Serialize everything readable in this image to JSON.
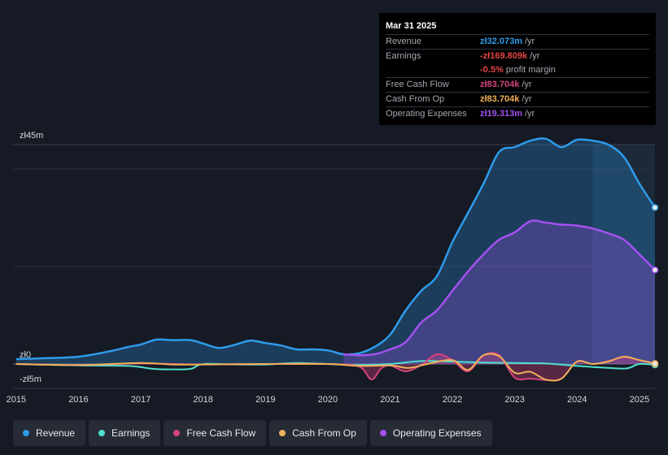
{
  "tooltip": {
    "date": "Mar 31 2025",
    "rows": [
      {
        "label": "Revenue",
        "value": "zł32.073m",
        "unit": "/yr",
        "color": "#2f9bea"
      },
      {
        "label": "Earnings",
        "value": "-zł169.809k",
        "unit": "/yr",
        "color": "#e64545"
      },
      {
        "label": "",
        "value": "-0.5%",
        "unit": "profit margin",
        "color": "#e64545"
      },
      {
        "label": "Free Cash Flow",
        "value": "zł83.704k",
        "unit": "/yr",
        "color": "#d6437e"
      },
      {
        "label": "Cash From Op",
        "value": "zł83.704k",
        "unit": "/yr",
        "color": "#f0b05a"
      },
      {
        "label": "Operating Expenses",
        "value": "zł19.313m",
        "unit": "/yr",
        "color": "#a451f0"
      }
    ]
  },
  "legend": [
    {
      "label": "Revenue",
      "color": "#2f9bea"
    },
    {
      "label": "Earnings",
      "color": "#4fe0cf"
    },
    {
      "label": "Free Cash Flow",
      "color": "#d6437e"
    },
    {
      "label": "Cash From Op",
      "color": "#f0b05a"
    },
    {
      "label": "Operating Expenses",
      "color": "#a451f0"
    }
  ],
  "chart_data": {
    "type": "area",
    "title": "",
    "xlabel": "",
    "ylabel": "",
    "y_tick_labels": [
      "zł45m",
      "zł0",
      "-zł5m"
    ],
    "ylim": [
      -5,
      45
    ],
    "xlim": [
      2014.95,
      2025.25
    ],
    "x_ticks": [
      2015,
      2016,
      2017,
      2018,
      2019,
      2020,
      2021,
      2022,
      2023,
      2024,
      2025
    ],
    "x_tick_labels": [
      "2015",
      "2016",
      "2017",
      "2018",
      "2019",
      "2020",
      "2021",
      "2022",
      "2023",
      "2024",
      "2025"
    ],
    "forecast_start": 2024.25,
    "series": [
      {
        "name": "Revenue",
        "color": "#2f9bea",
        "fill": true,
        "x": [
          2015,
          2015.5,
          2016,
          2016.5,
          2016.8,
          2017,
          2017.25,
          2017.5,
          2017.8,
          2018,
          2018.25,
          2018.5,
          2018.75,
          2019,
          2019.25,
          2019.5,
          2019.75,
          2020,
          2020.25,
          2020.5,
          2020.75,
          2021,
          2021.25,
          2021.5,
          2021.75,
          2022,
          2022.25,
          2022.5,
          2022.75,
          2023,
          2023.25,
          2023.5,
          2023.75,
          2024,
          2024.25,
          2024.5,
          2024.75,
          2025,
          2025.25
        ],
        "values": [
          1.0,
          1.2,
          1.5,
          2.6,
          3.5,
          4.0,
          5.0,
          4.9,
          4.9,
          4.2,
          3.3,
          3.9,
          4.8,
          4.3,
          3.8,
          3.0,
          3.0,
          2.8,
          2.0,
          2.2,
          3.5,
          6.0,
          11.0,
          15.0,
          18.0,
          25.0,
          31.0,
          37.0,
          43.5,
          44.5,
          45.8,
          46.2,
          44.5,
          46.0,
          45.8,
          45.0,
          42.5,
          37.0,
          32.1
        ]
      },
      {
        "name": "Operating Expenses",
        "color": "#a451f0",
        "fill": true,
        "x": [
          2020.25,
          2020.5,
          2020.75,
          2021,
          2021.25,
          2021.5,
          2021.75,
          2022,
          2022.25,
          2022.5,
          2022.75,
          2023,
          2023.25,
          2023.5,
          2023.75,
          2024,
          2024.25,
          2024.5,
          2024.75,
          2025,
          2025.25
        ],
        "values": [
          2.0,
          1.8,
          2.0,
          3.0,
          4.5,
          8.5,
          11.0,
          15.0,
          19.0,
          22.5,
          25.5,
          27.0,
          29.3,
          29.0,
          28.6,
          28.4,
          27.8,
          26.8,
          25.5,
          22.5,
          19.3
        ]
      },
      {
        "name": "Earnings",
        "color": "#4fe0cf",
        "fill": false,
        "x": [
          2015,
          2016,
          2016.8,
          2017.2,
          2017.5,
          2017.8,
          2018,
          2018.5,
          2019,
          2019.5,
          2020,
          2020.5,
          2021,
          2021.5,
          2022,
          2022.5,
          2023,
          2023.5,
          2024,
          2024.5,
          2024.8,
          2025,
          2025.25
        ],
        "values": [
          0.0,
          -0.3,
          -0.4,
          -1.0,
          -1.1,
          -1.0,
          0.0,
          -0.1,
          -0.1,
          0.2,
          0.0,
          -0.2,
          0.0,
          0.6,
          0.5,
          0.3,
          0.2,
          0.1,
          -0.4,
          -0.8,
          -0.9,
          0.0,
          -0.17
        ]
      },
      {
        "name": "Free Cash Flow",
        "color": "#d6437e",
        "fill": true,
        "x": [
          2015,
          2016,
          2017,
          2018,
          2019,
          2020,
          2020.5,
          2020.7,
          2020.85,
          2021,
          2021.25,
          2021.5,
          2021.75,
          2022,
          2022.25,
          2022.5,
          2022.75,
          2023,
          2023.25,
          2023.5,
          2023.75,
          2024,
          2024.25,
          2024.5,
          2024.75,
          2025,
          2025.25
        ],
        "values": [
          0.0,
          -0.2,
          0.1,
          -0.1,
          0.0,
          0.0,
          -0.5,
          -3.2,
          -1.0,
          -0.3,
          -1.5,
          -0.2,
          2.0,
          0.8,
          -1.5,
          1.8,
          1.8,
          -2.8,
          -3.0,
          -3.3,
          -3.0,
          0.5,
          0.0,
          0.6,
          1.4,
          0.8,
          0.08
        ]
      },
      {
        "name": "Cash From Op",
        "color": "#f0b05a",
        "fill": false,
        "x": [
          2015,
          2016,
          2017,
          2017.5,
          2018,
          2019,
          2020,
          2020.5,
          2021,
          2021.3,
          2021.6,
          2022,
          2022.25,
          2022.5,
          2022.75,
          2023,
          2023.25,
          2023.5,
          2023.75,
          2024,
          2024.25,
          2024.5,
          2024.75,
          2025,
          2025.25
        ],
        "values": [
          0.0,
          -0.2,
          0.2,
          -0.1,
          -0.1,
          0.0,
          0.0,
          -0.4,
          -0.3,
          -0.8,
          0.0,
          0.8,
          -1.2,
          1.8,
          1.6,
          -1.8,
          -1.6,
          -3.2,
          -3.0,
          0.5,
          0.0,
          0.5,
          1.5,
          0.8,
          0.08
        ]
      }
    ]
  }
}
